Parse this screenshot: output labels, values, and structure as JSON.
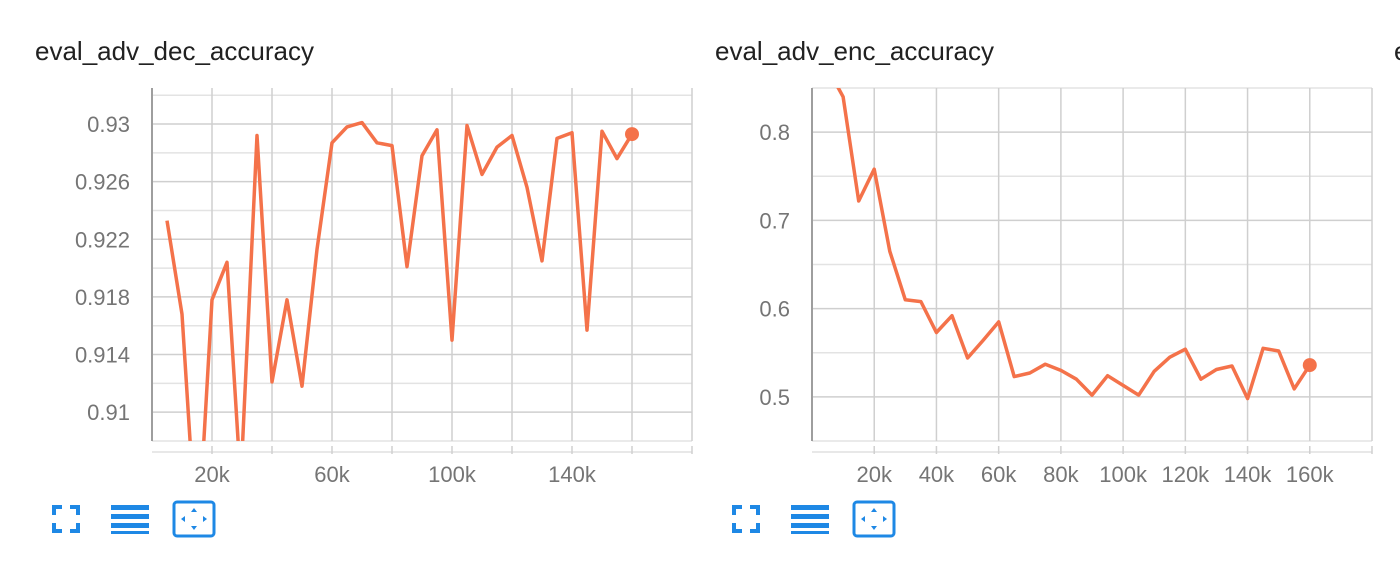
{
  "colors": {
    "line": "#f4724a",
    "grid": "#cfcfcf",
    "axis": "#9e9e9e",
    "tick_text": "#757575",
    "icon": "#1e88e5"
  },
  "toolbar": {
    "fullscreen_icon": "fullscreen-icon",
    "data_table_icon": "data-table-icon",
    "fit_domain_icon": "fit-domain-icon"
  },
  "partial_next_title": "e",
  "chart_data": [
    {
      "type": "line",
      "title": "eval_adv_dec_accuracy",
      "xlabel": "",
      "ylabel": "",
      "xlim": [
        0,
        180000
      ],
      "ylim": [
        0.908,
        0.9325
      ],
      "x_ticks": [
        20000,
        60000,
        100000,
        140000
      ],
      "x_tick_labels": [
        "20k",
        "60k",
        "100k",
        "140k"
      ],
      "y_ticks": [
        0.91,
        0.914,
        0.918,
        0.922,
        0.926,
        0.93
      ],
      "y_tick_labels": [
        "0.91",
        "0.914",
        "0.918",
        "0.922",
        "0.926",
        "0.93"
      ],
      "grid": true,
      "series": [
        {
          "x": [
            5000,
            10000,
            13000,
            17000,
            20000,
            25000,
            29000,
            30000,
            35000,
            40000,
            45000,
            50000,
            55000,
            60000,
            65000,
            70000,
            75000,
            80000,
            85000,
            90000,
            95000,
            100000,
            105000,
            110000,
            115000,
            120000,
            125000,
            130000,
            135000,
            140000,
            145000,
            150000,
            155000,
            160000
          ],
          "values": [
            0.9233,
            0.9168,
            0.907,
            0.907,
            0.9178,
            0.9204,
            0.907,
            0.907,
            0.9292,
            0.9121,
            0.9178,
            0.9118,
            0.9213,
            0.9287,
            0.9298,
            0.9301,
            0.9287,
            0.9285,
            0.9201,
            0.9278,
            0.9296,
            0.915,
            0.9299,
            0.9265,
            0.9284,
            0.9292,
            0.9256,
            0.9205,
            0.929,
            0.9294,
            0.9157,
            0.9295,
            0.9276,
            0.9293
          ]
        }
      ]
    },
    {
      "type": "line",
      "title": "eval_adv_enc_accuracy",
      "xlabel": "",
      "ylabel": "",
      "xlim": [
        0,
        180000
      ],
      "ylim": [
        0.45,
        0.85
      ],
      "x_ticks": [
        20000,
        40000,
        60000,
        80000,
        100000,
        120000,
        140000,
        160000
      ],
      "x_tick_labels": [
        "20k",
        "40k",
        "60k",
        "80k",
        "100k",
        "120k",
        "140k",
        "160k"
      ],
      "y_ticks": [
        0.5,
        0.6,
        0.7,
        0.8
      ],
      "y_tick_labels": [
        "0.5",
        "0.6",
        "0.7",
        "0.8"
      ],
      "grid": true,
      "series": [
        {
          "x": [
            8000,
            10000,
            15000,
            20000,
            25000,
            30000,
            35000,
            40000,
            45000,
            50000,
            55000,
            60000,
            65000,
            70000,
            75000,
            80000,
            85000,
            90000,
            95000,
            100000,
            105000,
            110000,
            115000,
            120000,
            125000,
            130000,
            135000,
            140000,
            145000,
            150000,
            155000,
            160000
          ],
          "values": [
            0.853,
            0.84,
            0.722,
            0.758,
            0.665,
            0.61,
            0.608,
            0.573,
            0.592,
            0.544,
            0.564,
            0.585,
            0.523,
            0.527,
            0.537,
            0.53,
            0.52,
            0.502,
            0.524,
            0.513,
            0.502,
            0.529,
            0.545,
            0.554,
            0.52,
            0.531,
            0.535,
            0.498,
            0.555,
            0.552,
            0.509,
            0.536
          ]
        }
      ]
    }
  ]
}
